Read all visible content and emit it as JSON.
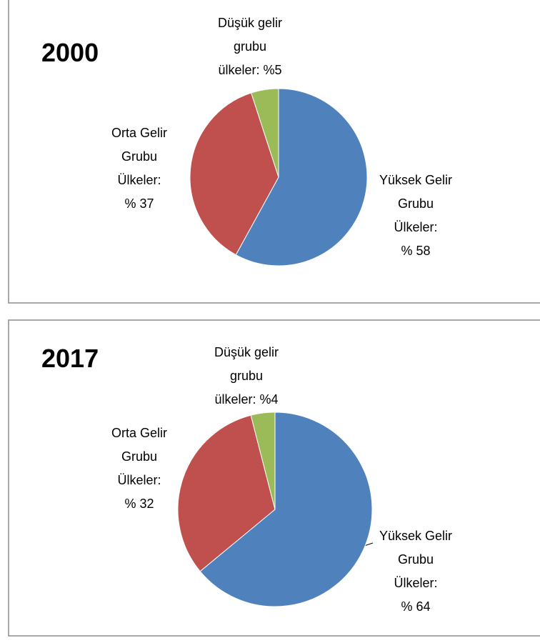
{
  "chart_data": [
    {
      "type": "pie",
      "title": "2000",
      "values": [
        58,
        37,
        5
      ],
      "value_labels": [
        "Yüksek Gelir\nGrubu\nÜlkeler:\n% 58",
        "Orta Gelir\nGrubu\nÜlkeler:\n% 37",
        "Düşük gelir\ngrubu\nülkeler: %5"
      ],
      "colors": [
        "#4f81bd",
        "#c0504d",
        "#9bbb59"
      ]
    },
    {
      "type": "pie",
      "title": "2017",
      "values": [
        64,
        32,
        4
      ],
      "value_labels": [
        "Yüksek Gelir\nGrubu\nÜlkeler:\n% 64",
        "Orta Gelir\nGrubu\nÜlkeler:\n% 32",
        "Düşük gelir\ngrubu\nülkeler: %4"
      ],
      "colors": [
        "#4f81bd",
        "#c0504d",
        "#9bbb59"
      ]
    }
  ]
}
